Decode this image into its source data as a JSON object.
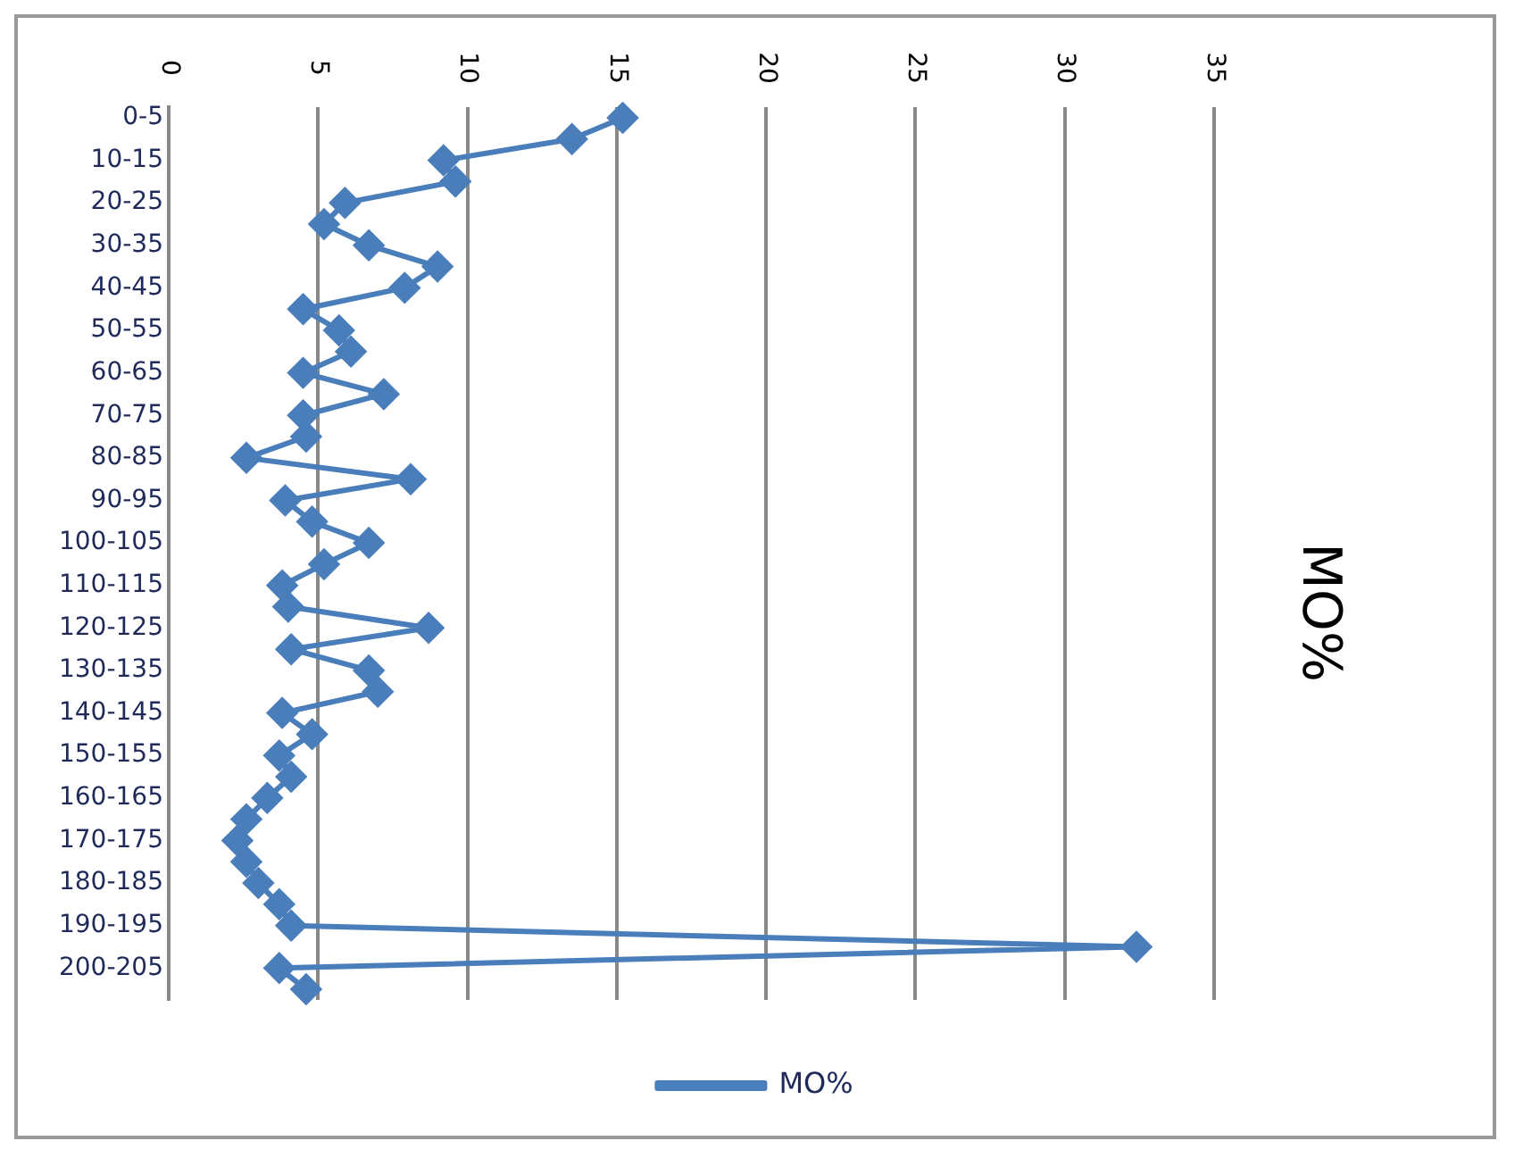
{
  "chart_data": {
    "type": "line",
    "title": "MO%",
    "categories": [
      "0-5",
      null,
      "10-15",
      null,
      "20-25",
      null,
      "30-35",
      null,
      "40-45",
      null,
      "50-55",
      null,
      "60-65",
      null,
      "70-75",
      null,
      "80-85",
      null,
      "90-95",
      null,
      "100-105",
      null,
      "110-115",
      null,
      "120-125",
      null,
      "130-135",
      null,
      "140-145",
      null,
      "150-155",
      null,
      "160-165",
      null,
      "170-175",
      null,
      "180-185",
      null,
      "190-195",
      null,
      "200-205",
      null
    ],
    "orientation": "horizontal",
    "series": [
      {
        "name": "MO%",
        "color": "#4a7ebb",
        "values": [
          15.2,
          13.5,
          9.2,
          9.6,
          5.9,
          5.2,
          6.7,
          9.0,
          7.9,
          4.5,
          5.7,
          6.1,
          4.5,
          7.2,
          4.5,
          4.6,
          2.6,
          8.1,
          3.9,
          4.8,
          6.7,
          5.2,
          3.8,
          4.0,
          8.7,
          4.1,
          6.7,
          7.0,
          3.8,
          4.8,
          3.7,
          4.1,
          3.3,
          2.6,
          2.3,
          2.6,
          3.0,
          3.7,
          4.1,
          32.4,
          3.7,
          4.6
        ]
      }
    ],
    "xlim": [
      0,
      35
    ],
    "xticks": [
      0,
      5,
      10,
      15,
      20,
      25,
      30,
      35
    ],
    "grid": "x",
    "legend": "bottom",
    "marker": "diamond",
    "line_style": "solid"
  }
}
